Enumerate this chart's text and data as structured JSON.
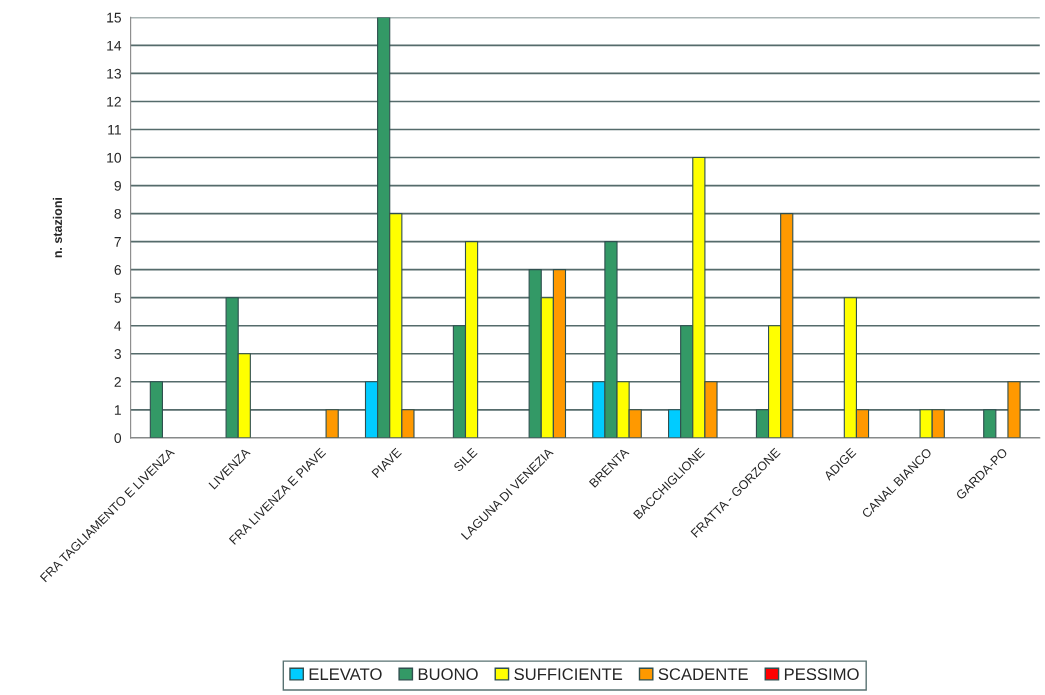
{
  "chart_data": {
    "type": "bar",
    "ylabel": "n. stazioni",
    "categories": [
      "FRA TAGLIAMENTO E LIVENZA",
      "LIVENZA",
      "FRA LIVENZA E PIAVE",
      "PIAVE",
      "SILE",
      "LAGUNA DI VENEZIA",
      "BRENTA",
      "BACCHIGLIONE",
      "FRATTA - GORZONE",
      "ADIGE",
      "CANAL BIANCO",
      "GARDA-PO"
    ],
    "series": [
      {
        "name": "ELEVATO",
        "color": "#00ccff",
        "values": [
          0,
          0,
          0,
          2,
          0,
          0,
          2,
          1,
          0,
          0,
          0,
          0
        ]
      },
      {
        "name": "BUONO",
        "color": "#339966",
        "values": [
          2,
          5,
          0,
          15,
          4,
          6,
          7,
          4,
          1,
          0,
          0,
          1
        ]
      },
      {
        "name": "SUFFICIENTE",
        "color": "#ffff00",
        "values": [
          0,
          3,
          0,
          8,
          7,
          5,
          2,
          10,
          4,
          5,
          1,
          0
        ]
      },
      {
        "name": "SCADENTE",
        "color": "#ff9900",
        "values": [
          0,
          0,
          1,
          1,
          0,
          6,
          1,
          2,
          8,
          1,
          1,
          2
        ]
      },
      {
        "name": "PESSIMO",
        "color": "#ff0000",
        "values": [
          0,
          0,
          0,
          0,
          0,
          0,
          0,
          0,
          0,
          0,
          0,
          0
        ]
      }
    ],
    "ylim": [
      0,
      15
    ],
    "yticks": [
      0,
      1,
      2,
      3,
      4,
      5,
      6,
      7,
      8,
      9,
      10,
      11,
      12,
      13,
      14,
      15
    ],
    "grid": "y",
    "legend": "bottom"
  }
}
